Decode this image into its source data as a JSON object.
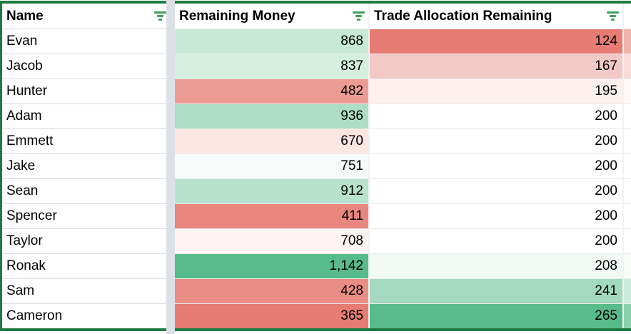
{
  "table": {
    "header": {
      "columns": [
        {
          "label": "Name"
        },
        {
          "label": "Remaining Money"
        },
        {
          "label": "Trade Allocation Remaining"
        }
      ],
      "filter_icon": "filter-lines-icon"
    },
    "rows": [
      {
        "name": "Evan",
        "money": "868",
        "trade": "124",
        "money_bg": "#c9e9d8",
        "trade_bg": "#e67c73",
        "edge_bg": "#f0b4ae"
      },
      {
        "name": "Jacob",
        "money": "837",
        "trade": "167",
        "money_bg": "#d4eee0",
        "trade_bg": "#f3c9c5",
        "edge_bg": "#f8dcd9"
      },
      {
        "name": "Hunter",
        "money": "482",
        "trade": "195",
        "money_bg": "#ec9c94",
        "trade_bg": "#fdf1f0",
        "edge_bg": "#fef8f7"
      },
      {
        "name": "Adam",
        "money": "936",
        "trade": "200",
        "money_bg": "#abdec5",
        "trade_bg": "#ffffff",
        "edge_bg": "#ffffff"
      },
      {
        "name": "Emmett",
        "money": "670",
        "trade": "200",
        "money_bg": "#fbe6e4",
        "trade_bg": "#ffffff",
        "edge_bg": "#ffffff"
      },
      {
        "name": "Jake",
        "money": "751",
        "trade": "200",
        "money_bg": "#f7fbf9",
        "trade_bg": "#ffffff",
        "edge_bg": "#ffffff"
      },
      {
        "name": "Sean",
        "money": "912",
        "trade": "200",
        "money_bg": "#b7e2cc",
        "trade_bg": "#ffffff",
        "edge_bg": "#ffffff"
      },
      {
        "name": "Spencer",
        "money": "411",
        "trade": "200",
        "money_bg": "#e9867d",
        "trade_bg": "#ffffff",
        "edge_bg": "#ffffff"
      },
      {
        "name": "Taylor",
        "money": "708",
        "trade": "200",
        "money_bg": "#fdf4f3",
        "trade_bg": "#ffffff",
        "edge_bg": "#ffffff"
      },
      {
        "name": "Ronak",
        "money": "1,142",
        "trade": "208",
        "money_bg": "#57bb8a",
        "trade_bg": "#f1f9f5",
        "edge_bg": "#f6fbf8"
      },
      {
        "name": "Sam",
        "money": "428",
        "trade": "241",
        "money_bg": "#ea8d84",
        "trade_bg": "#a3d9bf",
        "edge_bg": "#cdebdc"
      },
      {
        "name": "Cameron",
        "money": "365",
        "trade": "265",
        "money_bg": "#e67c73",
        "trade_bg": "#57bb8a",
        "edge_bg": "#8bd0ae"
      }
    ]
  },
  "colors": {
    "border_green": "#1f7b40",
    "filter_icon_green": "#3fa05a",
    "column_gap_strip": "#dde1e7",
    "scale_min_red": "#e67c73",
    "scale_max_green": "#57bb8a"
  }
}
